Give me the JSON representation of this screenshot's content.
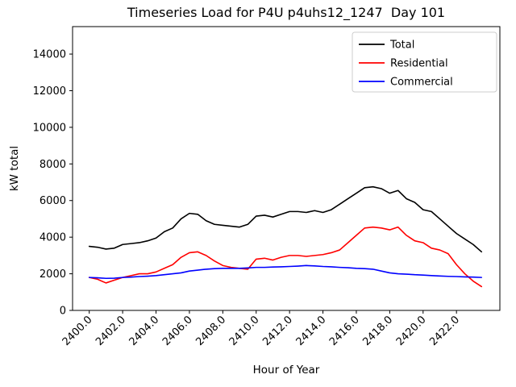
{
  "chart_data": {
    "type": "line",
    "title": "Timeseries Load for P4U p4uhs12_1247  Day 101",
    "xlabel": "Hour of Year",
    "ylabel": "kW total",
    "xlim": [
      2399.0,
      2424.6
    ],
    "ylim": [
      0,
      15500
    ],
    "grid": false,
    "legend_position": "upper right",
    "xtick_values": [
      2400,
      2402,
      2404,
      2406,
      2408,
      2410,
      2412,
      2414,
      2416,
      2418,
      2420,
      2422
    ],
    "xtick_labels": [
      "2400.0",
      "2402.0",
      "2404.0",
      "2406.0",
      "2408.0",
      "2410.0",
      "2412.0",
      "2414.0",
      "2416.0",
      "2418.0",
      "2420.0",
      "2422.0"
    ],
    "ytick_values": [
      0,
      2000,
      4000,
      6000,
      8000,
      10000,
      12000,
      14000
    ],
    "ytick_labels": [
      "0",
      "2000",
      "4000",
      "6000",
      "8000",
      "10000",
      "12000",
      "14000"
    ],
    "x": [
      2400.0,
      2400.5,
      2401.0,
      2401.5,
      2402.0,
      2402.5,
      2403.0,
      2403.5,
      2404.0,
      2404.5,
      2405.0,
      2405.5,
      2406.0,
      2406.5,
      2407.0,
      2407.5,
      2408.0,
      2408.5,
      2409.0,
      2409.5,
      2410.0,
      2410.5,
      2411.0,
      2411.5,
      2412.0,
      2412.5,
      2413.0,
      2413.5,
      2414.0,
      2414.5,
      2415.0,
      2415.5,
      2416.0,
      2416.5,
      2417.0,
      2417.5,
      2418.0,
      2418.5,
      2419.0,
      2419.5,
      2420.0,
      2420.5,
      2421.0,
      2421.5,
      2422.0,
      2422.5,
      2423.0,
      2423.5
    ],
    "series": [
      {
        "name": "Total",
        "color": "#000000",
        "values": [
          3500,
          3450,
          3350,
          3400,
          3600,
          3650,
          3700,
          3800,
          3950,
          4300,
          4500,
          5000,
          5300,
          5250,
          4900,
          4700,
          4650,
          4600,
          4550,
          4700,
          5150,
          5200,
          5100,
          5250,
          5400,
          5400,
          5350,
          5450,
          5350,
          5500,
          5800,
          6100,
          6400,
          6700,
          6750,
          6650,
          6400,
          6550,
          6100,
          5900,
          5500,
          5400,
          5000,
          4600,
          4200,
          3900,
          3600,
          3200
        ]
      },
      {
        "name": "Residential",
        "color": "#ff0000",
        "values": [
          1800,
          1700,
          1500,
          1650,
          1800,
          1900,
          2000,
          2000,
          2100,
          2300,
          2500,
          2900,
          3150,
          3200,
          3000,
          2700,
          2450,
          2350,
          2300,
          2250,
          2800,
          2850,
          2750,
          2900,
          3000,
          3000,
          2950,
          3000,
          3050,
          3150,
          3300,
          3700,
          4100,
          4500,
          4550,
          4500,
          4400,
          4550,
          4100,
          3800,
          3700,
          3400,
          3300,
          3100,
          2500,
          2000,
          1600,
          1300
        ]
      },
      {
        "name": "Commercial",
        "color": "#0000ff",
        "values": [
          1800,
          1780,
          1750,
          1760,
          1800,
          1820,
          1850,
          1870,
          1900,
          1950,
          2000,
          2050,
          2150,
          2200,
          2250,
          2280,
          2300,
          2300,
          2300,
          2320,
          2350,
          2350,
          2370,
          2380,
          2400,
          2420,
          2450,
          2430,
          2400,
          2380,
          2350,
          2330,
          2300,
          2280,
          2250,
          2150,
          2050,
          2000,
          1980,
          1950,
          1930,
          1900,
          1880,
          1860,
          1850,
          1830,
          1820,
          1800
        ]
      }
    ]
  }
}
